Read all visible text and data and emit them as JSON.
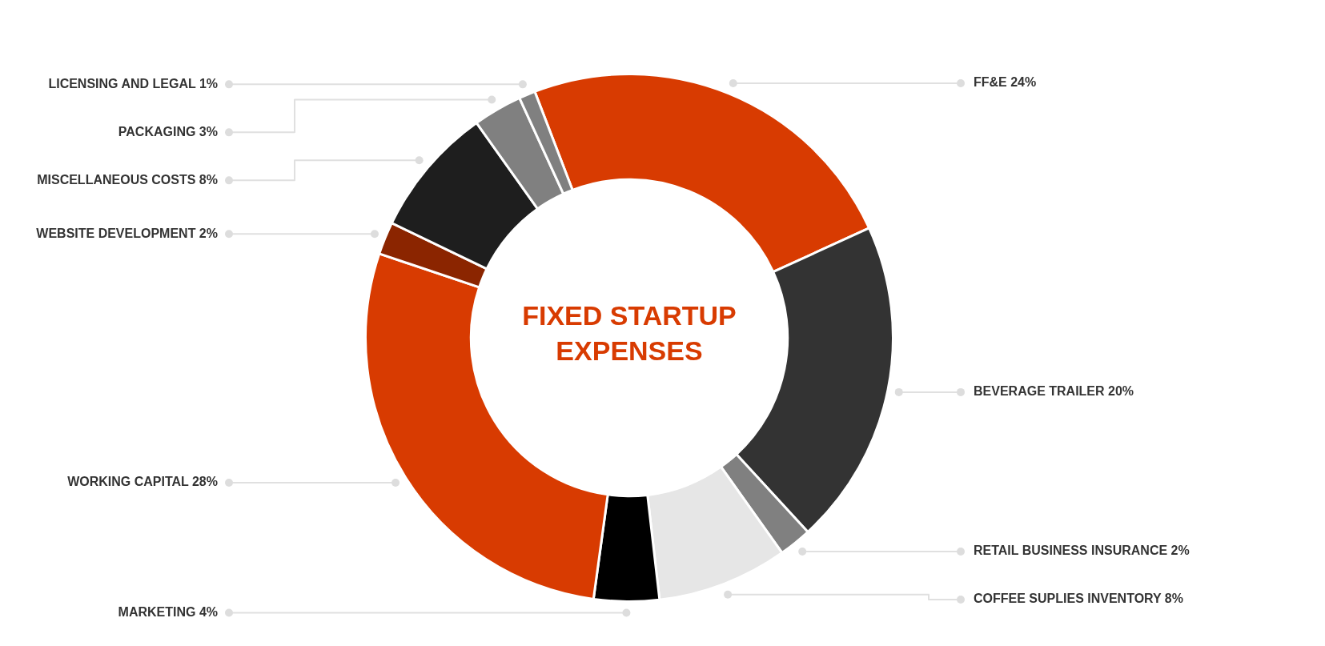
{
  "chart_data": {
    "type": "donut",
    "title": "FIXED STARTUP EXPENSES",
    "categories": [
      "FF&E",
      "BEVERAGE TRAILER",
      "RETAIL BUSINESS INSURANCE",
      "COFFEE SUPLIES INVENTORY",
      "MARKETING",
      "WORKING CAPITAL",
      "WEBSITE DEVELOPMENT",
      "MISCELLANEOUS COSTS",
      "PACKAGING",
      "LICENSING AND LEGAL"
    ],
    "values": [
      24,
      20,
      2,
      8,
      4,
      28,
      2,
      8,
      3,
      1
    ],
    "value_labels": [
      "24%",
      "20%",
      "2%",
      "8%",
      "4%",
      "28%",
      "2%",
      "8%",
      "3%",
      "1%"
    ],
    "colors": [
      "#d83b01",
      "#333333",
      "#808080",
      "#e6e6e6",
      "#000000",
      "#d83b01",
      "#8b2500",
      "#1e1e1e",
      "#808080",
      "#808080"
    ]
  }
}
